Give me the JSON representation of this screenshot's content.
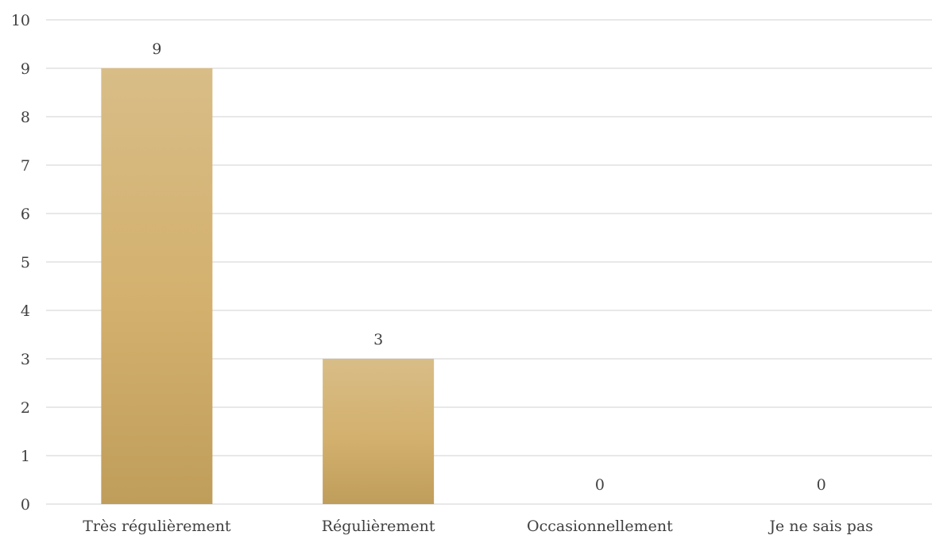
{
  "chart_data": {
    "type": "bar",
    "categories": [
      "Très régulièrement",
      "Régulièrement",
      "Occasionnellement",
      "Je ne sais pas"
    ],
    "values": [
      9,
      3,
      0,
      0
    ],
    "data_labels": [
      "9",
      "3",
      "0",
      "0"
    ],
    "yticks": [
      "0",
      "1",
      "2",
      "3",
      "4",
      "5",
      "6",
      "7",
      "8",
      "9",
      "10"
    ],
    "ylim": [
      0,
      10
    ],
    "grid": true,
    "title": "",
    "xlabel": "",
    "ylabel": "",
    "colors": {
      "bar_top": "#d8bd87",
      "bar_mid": "#d3b06d",
      "bar_bottom": "#bf9d5a",
      "grid": "#d9d9d9",
      "text": "#404040"
    }
  }
}
